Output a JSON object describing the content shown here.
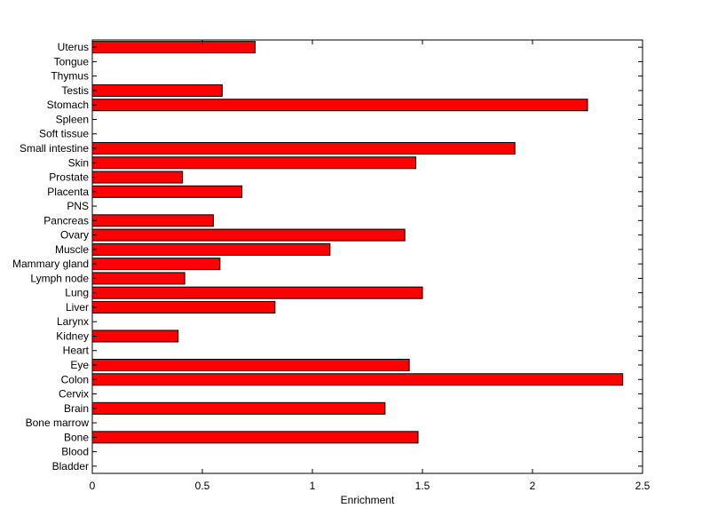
{
  "chart_data": {
    "type": "bar",
    "orientation": "horizontal",
    "categories": [
      "Bladder",
      "Blood",
      "Bone",
      "Bone marrow",
      "Brain",
      "Cervix",
      "Colon",
      "Eye",
      "Heart",
      "Kidney",
      "Larynx",
      "Liver",
      "Lung",
      "Lymph node",
      "Mammary gland",
      "Muscle",
      "Ovary",
      "Pancreas",
      "PNS",
      "Placenta",
      "Prostate",
      "Skin",
      "Small intestine",
      "Soft tissue",
      "Spleen",
      "Stomach",
      "Testis",
      "Thymus",
      "Tongue",
      "Uterus"
    ],
    "values": [
      0,
      0,
      1.48,
      0,
      1.33,
      0,
      2.41,
      1.44,
      0,
      0.39,
      0,
      0.83,
      1.5,
      0.42,
      0.58,
      1.08,
      1.42,
      0.55,
      0,
      0.68,
      0.41,
      1.47,
      1.92,
      0,
      0,
      2.25,
      0.59,
      0,
      0,
      0.74
    ],
    "xlabel": "Enrichment",
    "ylabel": "",
    "xlim": [
      0,
      2.5
    ],
    "xticks": [
      "0",
      "0.5",
      "1",
      "1.5",
      "2",
      "2.5"
    ],
    "bar_color": "#ff0000",
    "grid": false
  }
}
